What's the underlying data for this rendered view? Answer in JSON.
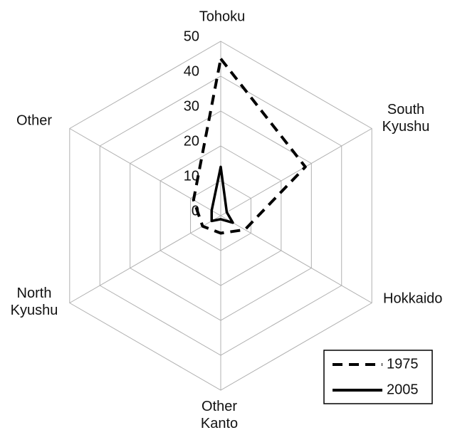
{
  "chart_data": {
    "type": "radar",
    "categories": [
      "Tohoku",
      "South Kyushu",
      "Hokkaido",
      "Other Kanto",
      "North Kyushu",
      "Other"
    ],
    "series": [
      {
        "name": "1975",
        "color": "#000000",
        "dash": true,
        "values": [
          45,
          28,
          8,
          5,
          6,
          9
        ]
      },
      {
        "name": "2005",
        "color": "#000000",
        "dash": false,
        "values": [
          14,
          2,
          4,
          1,
          3,
          3
        ]
      }
    ],
    "ylim": [
      0,
      50
    ],
    "yticks": [
      0,
      10,
      20,
      30,
      40,
      50
    ],
    "grid": true,
    "legend": "lower right"
  }
}
